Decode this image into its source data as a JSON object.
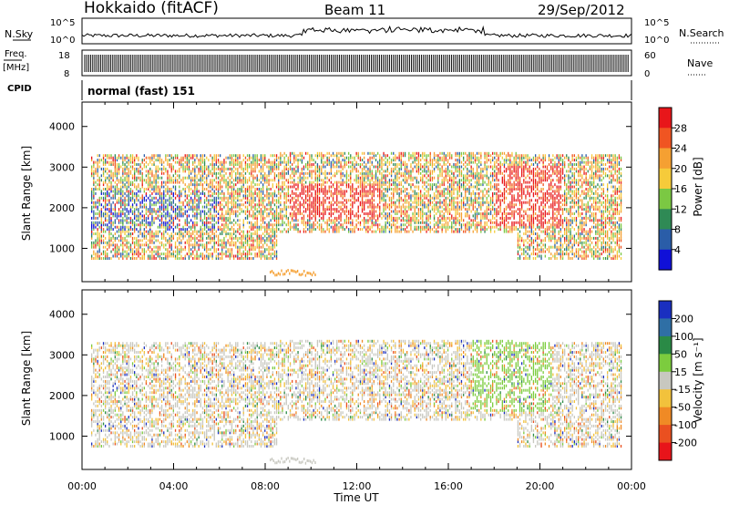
{
  "header": {
    "station": "Hokkaido (fitACF)",
    "beam": "Beam 11",
    "date": "29/Sep/2012"
  },
  "top_panels": {
    "nsky_label": "N.Sky",
    "nsky_ticks": [
      "10^5",
      "10^0"
    ],
    "nsearch_label": "N.Search",
    "freq_label_1": "Freq.",
    "freq_label_2": "[MHz]",
    "freq_ticks": [
      "18",
      "8"
    ],
    "nave_label": "Nave",
    "nave_ticks": [
      "60",
      "0"
    ],
    "cpid_label": "CPID",
    "cpid_value": "normal (fast) 151"
  },
  "colorbars": {
    "power": {
      "label": "Power [dB]",
      "ticks": [
        "28",
        "24",
        "20",
        "16",
        "12",
        "8",
        "4"
      ],
      "colors": [
        "#e8161a",
        "#f05522",
        "#f5a032",
        "#f6cb3a",
        "#7bc843",
        "#2f8a55",
        "#2a5da8",
        "#1010d8"
      ]
    },
    "velocity": {
      "label": "Velocity [m s⁻¹]",
      "ticks": [
        "200",
        "100",
        "50",
        "15",
        "-15",
        "-50",
        "-100",
        "-200"
      ],
      "colors": [
        "#1a2fc0",
        "#2f6fa5",
        "#2a8a46",
        "#7ccc3e",
        "#c8c8c0",
        "#f2c23c",
        "#f08a25",
        "#ea5020",
        "#e8141a"
      ]
    }
  },
  "chart_data": [
    {
      "type": "heatmap",
      "title": "Power",
      "ylabel": "Slant Range [km]",
      "xlabel": "",
      "x_ticks": [
        "00:00",
        "04:00",
        "08:00",
        "12:00",
        "16:00",
        "20:00",
        "00:00"
      ],
      "y_ticks": [
        "1000",
        "2000",
        "3000",
        "4000"
      ],
      "xlim_hours": [
        0,
        24
      ],
      "ylim_km": [
        180,
        4600
      ],
      "scatter_bands_km": [
        {
          "from_hour": 0.4,
          "to_hour": 8.5,
          "min_km": 700,
          "max_km": 3300
        },
        {
          "from_hour": 8.5,
          "to_hour": 19.0,
          "min_km": 1350,
          "max_km": 3350
        },
        {
          "from_hour": 19.0,
          "to_hour": 23.6,
          "min_km": 700,
          "max_km": 3300
        }
      ]
    },
    {
      "type": "heatmap",
      "title": "Velocity",
      "ylabel": "Slant Range [km]",
      "xlabel": "Time UT",
      "x_ticks": [
        "00:00",
        "04:00",
        "08:00",
        "12:00",
        "16:00",
        "20:00",
        "00:00"
      ],
      "y_ticks": [
        "1000",
        "2000",
        "3000",
        "4000"
      ],
      "xlim_hours": [
        0,
        24
      ],
      "ylim_km": [
        180,
        4600
      ]
    }
  ]
}
